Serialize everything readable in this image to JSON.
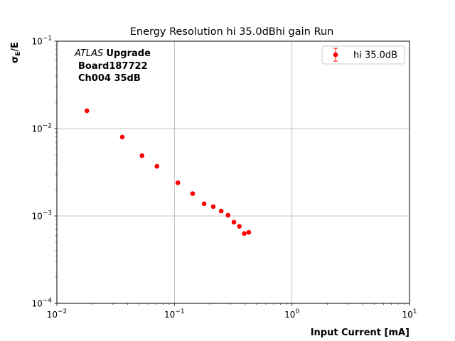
{
  "chart_data": {
    "type": "scatter",
    "title": "Energy Resolution hi 35.0dBhi gain Run",
    "xlabel": "Input Current [mA]",
    "ylabel": {
      "base": "σ",
      "sub": "E",
      "suffix": "/E"
    },
    "xscale": "log",
    "yscale": "log",
    "xlim": [
      0.01,
      10
    ],
    "ylim": [
      0.0001,
      0.1
    ],
    "grid": true,
    "legend_position": "top-right",
    "x_ticks": [
      {
        "value": 0.01,
        "base": "10",
        "exp": "−2"
      },
      {
        "value": 0.1,
        "base": "10",
        "exp": "−1"
      },
      {
        "value": 1,
        "base": "10",
        "exp": "0"
      },
      {
        "value": 10,
        "base": "10",
        "exp": "1"
      }
    ],
    "y_ticks": [
      {
        "value": 0.0001,
        "base": "10",
        "exp": "−4"
      },
      {
        "value": 0.001,
        "base": "10",
        "exp": "−3"
      },
      {
        "value": 0.01,
        "base": "10",
        "exp": "−2"
      },
      {
        "value": 0.1,
        "base": "10",
        "exp": "−1"
      }
    ],
    "annotation": {
      "italic": "ATLAS",
      "bold": "Upgrade",
      "line2": "Board187722",
      "line3": "Ch004 35dB"
    },
    "series": [
      {
        "name": "hi 35.0dB",
        "color": "#ff0000",
        "x": [
          0.018,
          0.036,
          0.053,
          0.071,
          0.107,
          0.143,
          0.179,
          0.214,
          0.25,
          0.286,
          0.321,
          0.357,
          0.393,
          0.429
        ],
        "y": [
          0.016,
          0.008,
          0.0049,
          0.0037,
          0.0024,
          0.0018,
          0.00138,
          0.00128,
          0.00114,
          0.00102,
          0.00085,
          0.00076,
          0.00063,
          0.00065
        ]
      }
    ]
  }
}
